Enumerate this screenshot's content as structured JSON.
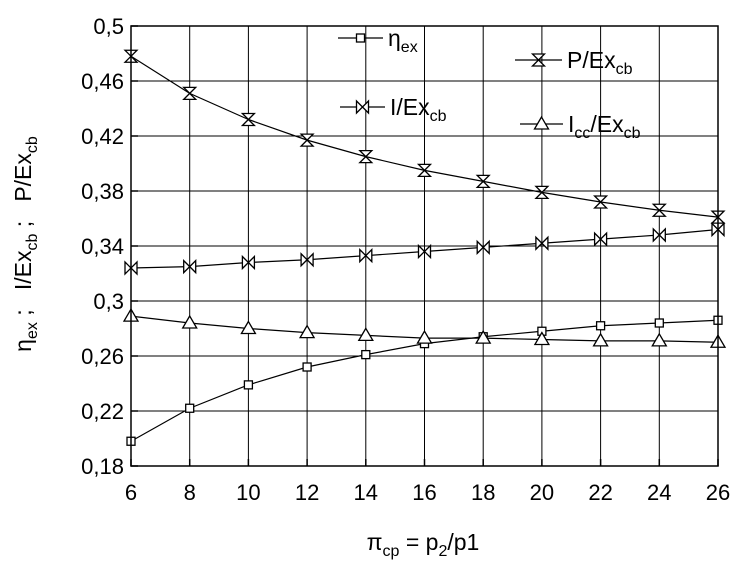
{
  "chart_data": {
    "type": "line",
    "xlabel": {
      "base": "π",
      "sub": "cp",
      "rest": " = p",
      "sub2": "2",
      "rest2": "/p1"
    },
    "ylabel": [
      {
        "base": "η",
        "sub": "ex",
        "rest": " ;   "
      },
      {
        "base": "I/Ex",
        "sub": "cb",
        "rest": " ;   "
      },
      {
        "base": "P/Ex",
        "sub": "cb",
        "rest": ""
      }
    ],
    "xlim": [
      6,
      26
    ],
    "ylim": [
      0.18,
      0.5
    ],
    "xticks": [
      6,
      8,
      10,
      12,
      14,
      16,
      18,
      20,
      22,
      24,
      26
    ],
    "xtick_labels": [
      "6",
      "8",
      "10",
      "12",
      "14",
      "16",
      "18",
      "20",
      "22",
      "24",
      "26"
    ],
    "yticks": [
      0.18,
      0.22,
      0.26,
      0.3,
      0.34,
      0.38,
      0.42,
      0.46,
      0.5
    ],
    "ytick_labels": [
      "0,18",
      "0,22",
      "0,26",
      "0,3",
      "0,34",
      "0,38",
      "0,42",
      "0,46",
      "0,5"
    ],
    "grid": true,
    "legend_position": "top-right",
    "x": [
      6,
      8,
      10,
      12,
      14,
      16,
      18,
      20,
      22,
      24,
      26
    ],
    "series": [
      {
        "name": "η",
        "sub": "ex",
        "marker": "square",
        "values": [
          0.198,
          0.222,
          0.239,
          0.252,
          0.261,
          0.269,
          0.274,
          0.278,
          0.282,
          0.284,
          0.286
        ]
      },
      {
        "name": "P/Ex",
        "sub": "cb",
        "marker": "hourglass",
        "values": [
          0.478,
          0.451,
          0.432,
          0.417,
          0.405,
          0.395,
          0.387,
          0.379,
          0.372,
          0.366,
          0.361
        ]
      },
      {
        "name": "I/Ex",
        "sub": "cb",
        "marker": "bowtie",
        "values": [
          0.324,
          0.325,
          0.328,
          0.33,
          0.333,
          0.336,
          0.339,
          0.342,
          0.345,
          0.348,
          0.352
        ]
      },
      {
        "name": "I",
        "sub": "cc",
        "rest": "/Ex",
        "sub2": "cb",
        "marker": "triangle",
        "values": [
          0.289,
          0.284,
          0.28,
          0.277,
          0.275,
          0.273,
          0.273,
          0.272,
          0.271,
          0.271,
          0.27
        ]
      }
    ]
  }
}
